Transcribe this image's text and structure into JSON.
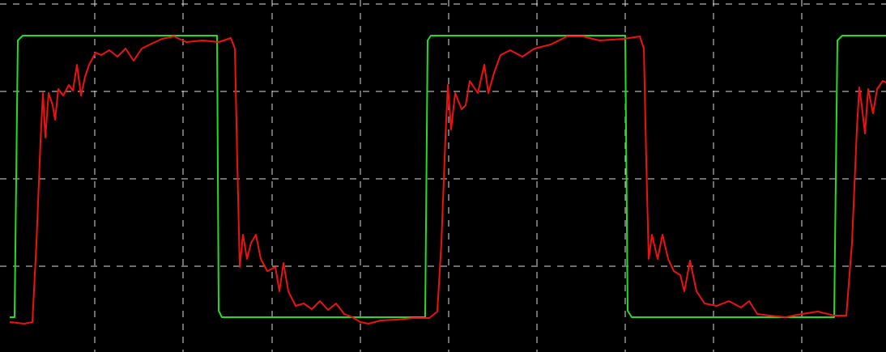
{
  "chart_data": {
    "type": "line",
    "xlim": [
      0,
      1094
    ],
    "ylim": [
      0,
      435
    ],
    "xticks": [
      117,
      226,
      336,
      445,
      554,
      663,
      772,
      881,
      990
    ],
    "yticks": [
      106,
      214,
      322,
      430
    ],
    "grid": true,
    "series": [
      {
        "color": "#22dd22",
        "x": [
          12,
          18,
          22,
          28,
          268,
          270,
          274,
          525,
          528,
          532,
          772,
          775,
          780,
          1030,
          1034,
          1040,
          1094
        ],
        "values": [
          43,
          43,
          385,
          391,
          391,
          51,
          43,
          43,
          385,
          391,
          391,
          51,
          43,
          43,
          385,
          391,
          391
        ]
      },
      {
        "color": "#ee1111",
        "x": [
          12,
          30,
          40,
          45,
          50,
          53,
          56,
          60,
          65,
          68,
          72,
          78,
          85,
          90,
          95,
          100,
          105,
          110,
          118,
          125,
          135,
          145,
          155,
          165,
          175,
          185,
          200,
          215,
          230,
          250,
          270,
          285,
          290,
          293,
          296,
          300,
          305,
          310,
          316,
          322,
          330,
          340,
          345,
          350,
          356,
          365,
          375,
          385,
          395,
          405,
          415,
          425,
          435,
          445,
          455,
          470,
          490,
          510,
          530,
          540,
          545,
          550,
          553,
          557,
          562,
          570,
          575,
          580,
          590,
          598,
          603,
          610,
          618,
          630,
          645,
          660,
          680,
          700,
          720,
          740,
          770,
          790,
          795,
          798,
          801,
          805,
          812,
          818,
          825,
          832,
          840,
          845,
          852,
          860,
          870,
          885,
          900,
          915,
          925,
          935,
          950,
          970,
          990,
          1010,
          1030,
          1045,
          1052,
          1058,
          1061,
          1064,
          1068,
          1072,
          1078,
          1083,
          1090,
          1094
        ],
        "values": [
          37,
          35,
          37,
          135,
          260,
          320,
          265,
          320,
          305,
          287,
          325,
          317,
          330,
          323,
          355,
          317,
          340,
          355,
          370,
          367,
          373,
          365,
          375,
          360,
          375,
          380,
          387,
          390,
          383,
          385,
          383,
          388,
          375,
          235,
          105,
          145,
          115,
          135,
          145,
          115,
          100,
          105,
          75,
          110,
          75,
          57,
          60,
          53,
          63,
          52,
          60,
          47,
          43,
          37,
          35,
          39,
          40,
          42,
          42,
          50,
          135,
          265,
          330,
          275,
          320,
          300,
          305,
          335,
          320,
          355,
          320,
          345,
          367,
          373,
          365,
          375,
          380,
          390,
          390,
          385,
          387,
          390,
          375,
          235,
          115,
          145,
          115,
          145,
          115,
          100,
          95,
          75,
          113,
          75,
          60,
          57,
          63,
          55,
          63,
          47,
          45,
          43,
          47,
          50,
          45,
          45,
          135,
          275,
          327,
          305,
          270,
          325,
          295,
          325,
          335,
          333
        ]
      }
    ]
  }
}
